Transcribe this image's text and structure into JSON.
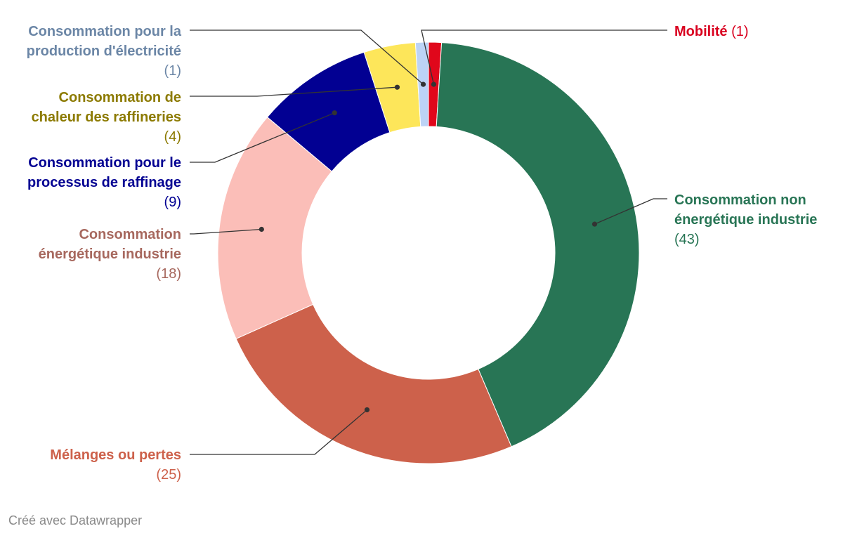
{
  "chart_data": {
    "type": "pie",
    "variant": "donut",
    "order": "clockwise from top",
    "slices": [
      {
        "id": "mobilite",
        "name": "Mobilité",
        "value": 1,
        "label": "(1)",
        "color": "#e0071b",
        "text_color": "#d9001f"
      },
      {
        "id": "non-energetique",
        "name": "Consommation non énergétique industrie",
        "name_lines": [
          "Consommation non",
          "énergétique industrie"
        ],
        "value": 43,
        "label": "(43)",
        "color": "#287555",
        "text_color": "#287555"
      },
      {
        "id": "melanges",
        "name": "Mélanges ou pertes",
        "name_lines": [
          "Mélanges ou pertes"
        ],
        "value": 25,
        "label": "(25)",
        "color": "#cd614b",
        "text_color": "#cd614b"
      },
      {
        "id": "energetique",
        "name": "Consommation énergétique industrie",
        "name_lines": [
          "Consommation",
          "énergétique industrie"
        ],
        "value": 18,
        "label": "(18)",
        "color": "#fbbeb8",
        "text_color": "#a7685e"
      },
      {
        "id": "raffinage",
        "name": "Consommation pour le processus de raffinage",
        "name_lines": [
          "Consommation pour le",
          "processus de raffinage"
        ],
        "value": 9,
        "label": "(9)",
        "color": "#020092",
        "text_color": "#020092"
      },
      {
        "id": "chaleur",
        "name": "Consommation de chaleur des raffineries",
        "name_lines": [
          "Consommation de",
          "chaleur des raffineries"
        ],
        "value": 4,
        "label": "(4)",
        "color": "#fde65a",
        "text_color": "#8c7a00"
      },
      {
        "id": "electricite",
        "name": "Consommation pour la production d'électricité",
        "name_lines": [
          "Consommation pour la",
          "production d'électricité"
        ],
        "value": 1,
        "label": "(1)",
        "color": "#bcd3f6",
        "text_color": "#6b86a6"
      }
    ]
  },
  "footer": {
    "credit": "Créé avec Datawrapper"
  }
}
